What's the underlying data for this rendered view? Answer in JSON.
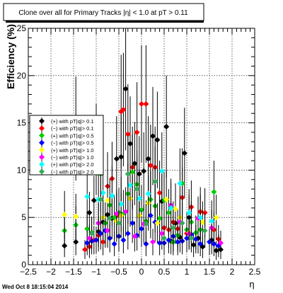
{
  "title": "Clone  over all for Primary Tracks |η| < 1.0 at pT > 0.11",
  "timestamp": "Wed Oct  8 18:15:04 2014",
  "chart_data": {
    "type": "scatter",
    "title": "Clone  over all for Primary Tracks |η| < 1.0 at pT > 0.11",
    "xlabel": "η",
    "ylabel": "Efficiency (%)",
    "xlim": [
      -2.5,
      2.5
    ],
    "ylim": [
      0,
      25
    ],
    "x_ticks": [
      "−2.5",
      "−2",
      "−1.5",
      "−1",
      "−0.5",
      "0",
      "0.5",
      "1",
      "1.5",
      "2",
      "2.5"
    ],
    "y_ticks": [
      "0",
      "5",
      "10",
      "15",
      "20",
      "25"
    ],
    "grid": true,
    "legend_position": "left",
    "series": [
      {
        "name": "(+) with pT|q|> 0.1",
        "color": "#000000",
        "x": [
          -1.7,
          -1.45,
          -1.15,
          -1.05,
          -0.95,
          -0.85,
          -0.75,
          -0.65,
          -0.55,
          -0.45,
          -0.35,
          -0.25,
          -0.15,
          -0.05,
          0.05,
          0.15,
          0.25,
          0.35,
          0.45,
          0.55,
          0.65,
          0.75,
          0.85,
          0.95,
          1.05,
          1.15,
          1.25,
          1.35,
          1.55,
          1.65,
          1.75
        ],
        "y": [
          2.0,
          2.4,
          5.5,
          6.8,
          3.5,
          4.5,
          5.3,
          4.9,
          11.2,
          11.4,
          18.6,
          12.8,
          10.7,
          9.6,
          9.9,
          11.2,
          13.6,
          13.2,
          6.7,
          14.6,
          2.5,
          4.4,
          2.9,
          11.8,
          5.0,
          2.1,
          2.8,
          1.9,
          2.6,
          1.5,
          1.6
        ],
        "err": [
          1.2,
          1.4,
          2.2,
          2.6,
          1.6,
          2.0,
          2.4,
          2.2,
          4.5,
          4.6,
          6.5,
          5.0,
          4.4,
          4.0,
          4.1,
          4.5,
          5.2,
          5.1,
          3.0,
          5.4,
          1.4,
          2.2,
          1.6,
          4.8,
          2.4,
          1.3,
          1.6,
          1.2,
          1.5,
          1.0,
          1.0
        ]
      },
      {
        "name": "(−) with pT|q|> 0.1",
        "color": "#ff0000",
        "x": [
          -1.25,
          -1.15,
          -1.05,
          -0.95,
          -0.85,
          -0.75,
          -0.65,
          -0.55,
          -0.45,
          -0.4,
          -0.3,
          -0.2,
          -0.1,
          0.0,
          0.1,
          0.2,
          0.3,
          0.4,
          0.5,
          0.6,
          0.7,
          0.8,
          0.9,
          1.0,
          1.1,
          1.3,
          1.4,
          1.6,
          1.7
        ],
        "y": [
          1.6,
          1.9,
          2.6,
          3.1,
          2.4,
          8.3,
          9.1,
          5.2,
          16.2,
          16.4,
          13.8,
          10.3,
          14.0,
          17.0,
          17.0,
          10.5,
          10.3,
          7.6,
          3.9,
          3.7,
          4.5,
          3.8,
          7.1,
          3.3,
          6.1,
          5.6,
          5.5,
          3.7,
          2.7
        ],
        "err": [
          1.0,
          1.2,
          1.5,
          1.7,
          1.4,
          3.6,
          3.9,
          2.4,
          6.0,
          6.0,
          5.3,
          4.3,
          5.3,
          6.2,
          6.2,
          4.3,
          4.3,
          3.4,
          2.0,
          1.9,
          2.2,
          2.0,
          3.2,
          1.8,
          2.8,
          2.6,
          2.6,
          1.9,
          1.5
        ]
      },
      {
        "name": "(+) with pT|q|> 0.5",
        "color": "#00cc00",
        "x": [
          -1.7,
          -1.45,
          -1.2,
          -1.1,
          -1.0,
          -0.9,
          -0.8,
          -0.7,
          -0.6,
          -0.5,
          -0.4,
          -0.3,
          -0.2,
          -0.1,
          0.0,
          0.1,
          0.2,
          0.3,
          0.4,
          0.5,
          0.6,
          0.7,
          0.8,
          0.9,
          1.0,
          1.1,
          1.2,
          1.3,
          1.6
        ],
        "y": [
          3.6,
          4.2,
          3.8,
          3.4,
          12.2,
          9.6,
          4.4,
          6.3,
          5.0,
          5.5,
          5.4,
          7.5,
          9.8,
          8.5,
          5.8,
          4.6,
          6.9,
          6.2,
          4.9,
          6.8,
          5.5,
          2.4,
          3.1,
          8.6,
          3.7,
          4.5,
          3.4,
          3.7,
          7.7
        ],
        "err": [
          1.8,
          2.0,
          1.9,
          1.7,
          4.8,
          4.0,
          2.2,
          2.8,
          2.4,
          2.6,
          2.5,
          3.2,
          4.0,
          3.6,
          2.6,
          2.2,
          3.0,
          2.8,
          2.3,
          3.0,
          2.5,
          1.4,
          1.7,
          3.7,
          1.9,
          2.2,
          1.8,
          1.9,
          3.3
        ]
      },
      {
        "name": "(−) with pT|q|> 0.5",
        "color": "#0000ff",
        "x": [
          -1.2,
          -1.1,
          -1.0,
          -0.9,
          -0.8,
          -0.7,
          -0.6,
          -0.5,
          -0.4,
          -0.3,
          -0.2,
          -0.1,
          0.0,
          0.1,
          0.2,
          0.3,
          0.4,
          0.5,
          0.6,
          0.7,
          0.8,
          0.9,
          1.0,
          1.1,
          1.2,
          1.3,
          1.5,
          1.6,
          1.7
        ],
        "y": [
          2.3,
          2.5,
          2.6,
          3.3,
          3.6,
          2.8,
          2.2,
          3.0,
          2.6,
          3.3,
          4.4,
          3.1,
          3.8,
          2.2,
          5.2,
          4.5,
          2.3,
          2.3,
          2.6,
          3.0,
          2.4,
          2.5,
          2.8,
          3.2,
          2.7,
          2.2,
          2.4,
          2.2,
          2.0
        ],
        "err": [
          1.3,
          1.4,
          1.4,
          1.7,
          1.8,
          1.5,
          1.3,
          1.6,
          1.4,
          1.7,
          2.1,
          1.6,
          1.9,
          1.3,
          2.4,
          2.1,
          1.3,
          1.3,
          1.4,
          1.6,
          1.4,
          1.4,
          1.5,
          1.6,
          1.5,
          1.3,
          1.4,
          1.3,
          1.2
        ]
      },
      {
        "name": "(+) with pT|q|> 1.0",
        "color": "#ffff00",
        "x": [
          -1.7,
          -1.45,
          -0.85,
          -0.75,
          -0.55,
          -0.45,
          -0.25,
          -0.05,
          0.15,
          0.35,
          0.55,
          0.75,
          0.85,
          1.05,
          1.35,
          1.65
        ],
        "y": [
          5.3,
          5.1,
          5.0,
          6.8,
          4.6,
          5.2,
          7.0,
          5.2,
          6.5,
          4.4,
          6.9,
          5.9,
          5.0,
          3.4,
          4.5,
          5.0
        ],
        "err": [
          2.5,
          2.4,
          2.4,
          3.0,
          2.2,
          2.4,
          3.0,
          2.4,
          2.9,
          2.1,
          3.0,
          2.7,
          2.4,
          1.8,
          2.2,
          2.4
        ]
      },
      {
        "name": "(−) with pT|q|> 1.0",
        "color": "#ff00ff",
        "x": [
          -1.15,
          -0.95,
          -0.75,
          -0.55,
          -0.35,
          -0.15,
          0.05,
          0.25,
          0.45,
          0.65,
          0.85,
          1.05,
          1.25,
          1.55,
          1.75
        ],
        "y": [
          2.8,
          4.4,
          3.6,
          5.4,
          5.6,
          3.0,
          4.3,
          2.4,
          3.3,
          6.3,
          4.5,
          3.3,
          4.9,
          3.9,
          2.3
        ],
        "err": [
          1.5,
          2.1,
          1.8,
          2.5,
          2.6,
          1.6,
          2.0,
          1.4,
          1.7,
          2.8,
          2.1,
          1.7,
          2.3,
          1.9,
          1.3
        ]
      },
      {
        "name": "(+) with pT|q|> 2.0",
        "color": "#00ffff",
        "x": [
          -1.45,
          -1.2,
          -0.95,
          -0.85,
          -0.65,
          -0.45,
          -0.25,
          -0.05,
          0.15,
          0.45,
          0.65,
          0.85,
          1.05,
          1.3,
          1.55
        ],
        "y": [
          14.4,
          7.2,
          6.9,
          7.6,
          7.3,
          6.4,
          8.4,
          7.0,
          7.5,
          9.9,
          6.0,
          8.6,
          5.5,
          5.0,
          4.6
        ],
        "err": [
          5.5,
          3.2,
          3.1,
          3.3,
          3.2,
          2.9,
          3.6,
          3.1,
          3.3,
          4.1,
          2.7,
          3.7,
          2.5,
          2.4,
          2.2
        ]
      },
      {
        "name": "(−) with pT|q|> 2.0",
        "color": "#33aa55",
        "x": [
          -1.1,
          -0.9,
          -0.7,
          -0.5,
          -0.3,
          -0.1,
          0.1,
          0.3,
          0.5,
          0.7,
          0.9,
          1.1,
          1.4
        ],
        "y": [
          3.3,
          6.9,
          4.9,
          4.4,
          9.6,
          8.0,
          4.3,
          8.8,
          2.8,
          3.9,
          4.4,
          2.8,
          3.6
        ],
        "err": [
          1.7,
          3.1,
          2.3,
          2.1,
          4.0,
          3.5,
          2.1,
          3.7,
          1.5,
          1.9,
          2.1,
          1.5,
          1.8
        ]
      }
    ]
  }
}
